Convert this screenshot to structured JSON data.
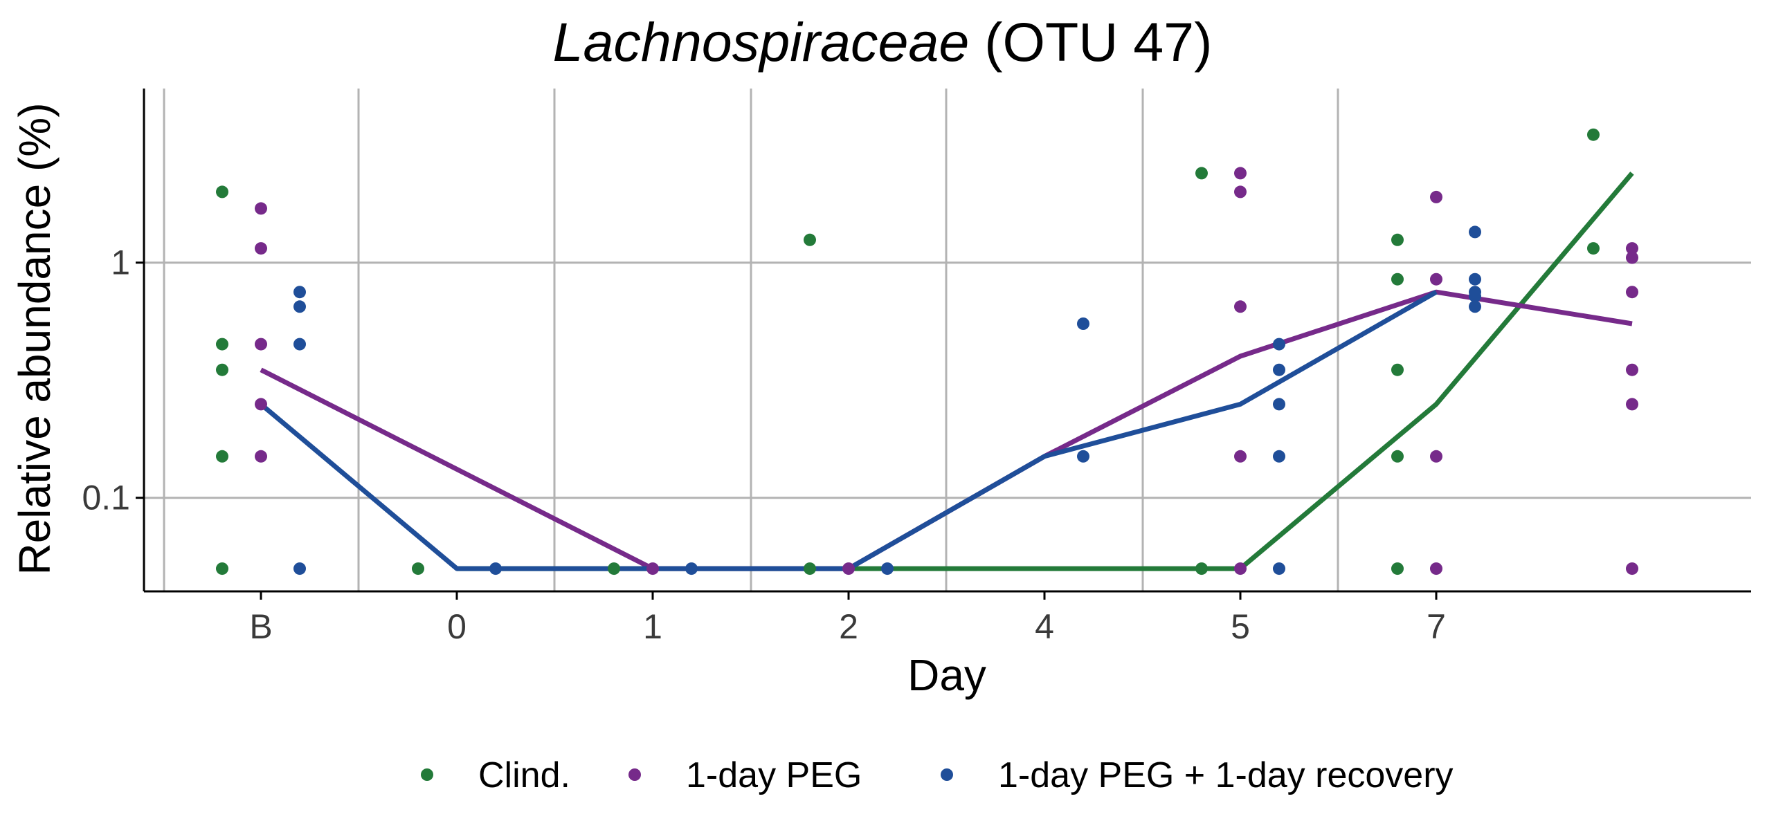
{
  "chart_data": {
    "type": "scatter",
    "title_italic": "Lachnospiraceae",
    "title_rest": "(OTU 47)",
    "xlabel": "Day",
    "ylabel": "Relative abundance (%)",
    "y_scale": "log",
    "ylim": [
      0.04,
      5.5
    ],
    "y_ticks": [
      0.1,
      1
    ],
    "y_tick_labels": [
      "0.1",
      "1"
    ],
    "categories": [
      "B",
      "0",
      "1",
      "2",
      "4",
      "5",
      "7"
    ],
    "grid": "major gridlines (vertical between days, horizontal at 0.1 and 1)",
    "legend_position": "bottom",
    "colors": {
      "Clind.": "#237a39",
      "1-day PEG": "#762a8a",
      "1-day PEG + 1-day recovery": "#1f4e99"
    },
    "legend": [
      "Clind.",
      "1-day PEG",
      "1-day PEG + 1-day recovery"
    ],
    "series": [
      {
        "name": "Clind.",
        "points": [
          {
            "day": "B",
            "y": 2.0
          },
          {
            "day": "B",
            "y": 0.45
          },
          {
            "day": "B",
            "y": 0.35
          },
          {
            "day": "B",
            "y": 0.15
          },
          {
            "day": "B",
            "y": 0.05
          },
          {
            "day": "0",
            "y": 0.05
          },
          {
            "day": "1",
            "y": 0.05
          },
          {
            "day": "2",
            "y": 1.25
          },
          {
            "day": "2",
            "y": 0.05
          },
          {
            "day": "5",
            "y": 2.4
          },
          {
            "day": "5",
            "y": 0.05
          },
          {
            "day": "7",
            "y": 1.25
          },
          {
            "day": "7",
            "y": 0.85
          },
          {
            "day": "7",
            "y": 0.35
          },
          {
            "day": "7",
            "y": 0.15
          },
          {
            "day": "7",
            "y": 0.05
          },
          {
            "day": "after-7",
            "y": 3.5
          },
          {
            "day": "after-7",
            "y": 1.15
          }
        ],
        "line": [
          {
            "day": "0",
            "y": 0.05
          },
          {
            "day": "1",
            "y": 0.05
          },
          {
            "day": "2",
            "y": 0.05
          },
          {
            "day": "4",
            "y": 0.05
          },
          {
            "day": "5",
            "y": 0.05
          },
          {
            "day": "7",
            "y": 0.25
          },
          {
            "day": "after-7",
            "y": 2.4
          }
        ]
      },
      {
        "name": "1-day PEG",
        "points": [
          {
            "day": "B",
            "y": 1.7
          },
          {
            "day": "B",
            "y": 1.15
          },
          {
            "day": "B",
            "y": 0.45
          },
          {
            "day": "B",
            "y": 0.25
          },
          {
            "day": "B",
            "y": 0.15
          },
          {
            "day": "1",
            "y": 0.05
          },
          {
            "day": "2",
            "y": 0.05
          },
          {
            "day": "5",
            "y": 2.4
          },
          {
            "day": "5",
            "y": 2.0
          },
          {
            "day": "5",
            "y": 0.65
          },
          {
            "day": "5",
            "y": 0.15
          },
          {
            "day": "5",
            "y": 0.05
          },
          {
            "day": "7",
            "y": 1.9
          },
          {
            "day": "7",
            "y": 0.85
          },
          {
            "day": "7",
            "y": 0.15
          },
          {
            "day": "7",
            "y": 0.05
          },
          {
            "day": "after-7",
            "y": 1.15
          },
          {
            "day": "after-7",
            "y": 1.05
          },
          {
            "day": "after-7",
            "y": 0.75
          },
          {
            "day": "after-7",
            "y": 0.35
          },
          {
            "day": "after-7",
            "y": 0.25
          },
          {
            "day": "after-7",
            "y": 0.05
          }
        ],
        "line": [
          {
            "day": "B",
            "y": 0.35
          },
          {
            "day": "1",
            "y": 0.05
          },
          {
            "day": "2",
            "y": 0.05
          },
          {
            "day": "4",
            "y": 0.15
          },
          {
            "day": "5",
            "y": 0.4
          },
          {
            "day": "7",
            "y": 0.75
          },
          {
            "day": "after-7",
            "y": 0.55
          }
        ]
      },
      {
        "name": "1-day PEG + 1-day recovery",
        "points": [
          {
            "day": "B",
            "y": 0.75
          },
          {
            "day": "B",
            "y": 0.65
          },
          {
            "day": "B",
            "y": 0.45
          },
          {
            "day": "B",
            "y": 0.05
          },
          {
            "day": "0",
            "y": 0.05
          },
          {
            "day": "1",
            "y": 0.05
          },
          {
            "day": "2",
            "y": 0.05
          },
          {
            "day": "4",
            "y": 0.55
          },
          {
            "day": "4",
            "y": 0.15
          },
          {
            "day": "5",
            "y": 0.45
          },
          {
            "day": "5",
            "y": 0.35
          },
          {
            "day": "5",
            "y": 0.25
          },
          {
            "day": "5",
            "y": 0.15
          },
          {
            "day": "5",
            "y": 0.05
          },
          {
            "day": "7",
            "y": 1.35
          },
          {
            "day": "7",
            "y": 0.85
          },
          {
            "day": "7",
            "y": 0.75
          },
          {
            "day": "7",
            "y": 0.72
          },
          {
            "day": "7",
            "y": 0.65
          }
        ],
        "line": [
          {
            "day": "B",
            "y": 0.25
          },
          {
            "day": "0",
            "y": 0.05
          },
          {
            "day": "1",
            "y": 0.05
          },
          {
            "day": "2",
            "y": 0.05
          },
          {
            "day": "4",
            "y": 0.15
          },
          {
            "day": "5",
            "y": 0.25
          },
          {
            "day": "7",
            "y": 0.75
          }
        ]
      }
    ]
  }
}
